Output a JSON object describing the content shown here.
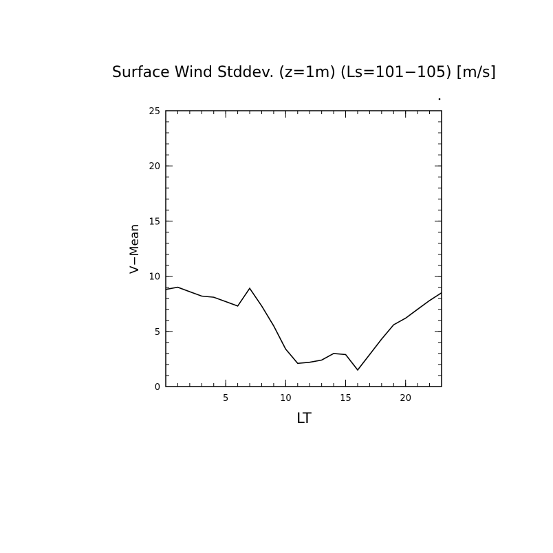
{
  "chart_data": {
    "type": "line",
    "title": "Surface Wind Stddev. (z=1m) (Ls=101−105) [m/s]",
    "xlabel": "LT",
    "ylabel": "V−Mean",
    "xlim": [
      0,
      23
    ],
    "ylim": [
      0,
      25
    ],
    "x_ticks": [
      5,
      10,
      15,
      20
    ],
    "y_ticks": [
      0,
      5,
      10,
      15,
      20,
      25
    ],
    "grid": false,
    "series": [
      {
        "x": [
          0,
          1,
          2,
          3,
          4,
          5,
          6,
          7,
          8,
          9,
          10,
          11,
          12,
          13,
          14,
          15,
          16,
          17,
          18,
          19,
          20,
          21,
          22,
          23
        ],
        "values": [
          8.8,
          9.0,
          8.6,
          8.2,
          8.1,
          7.7,
          7.3,
          8.9,
          7.3,
          5.5,
          3.4,
          2.1,
          2.2,
          2.4,
          3.0,
          2.9,
          1.5,
          2.9,
          4.3,
          5.6,
          6.2,
          7.0,
          7.8,
          8.5
        ]
      }
    ]
  }
}
